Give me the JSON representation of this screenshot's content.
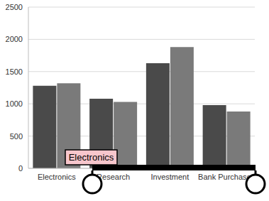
{
  "chart_data": {
    "type": "bar",
    "categories": [
      "Electronics",
      "Research",
      "Investment",
      "Bank Purchases"
    ],
    "series": [
      {
        "color": "#4a4a4a",
        "values": [
          1280,
          1080,
          1630,
          980
        ]
      },
      {
        "color": "#7a7a7a",
        "values": [
          1320,
          1030,
          1880,
          880
        ]
      }
    ],
    "ylim": [
      0,
      2500
    ],
    "yticks": [
      0,
      500,
      1000,
      1500,
      2000,
      2500
    ],
    "grid": true,
    "annotation": "Electronics"
  }
}
